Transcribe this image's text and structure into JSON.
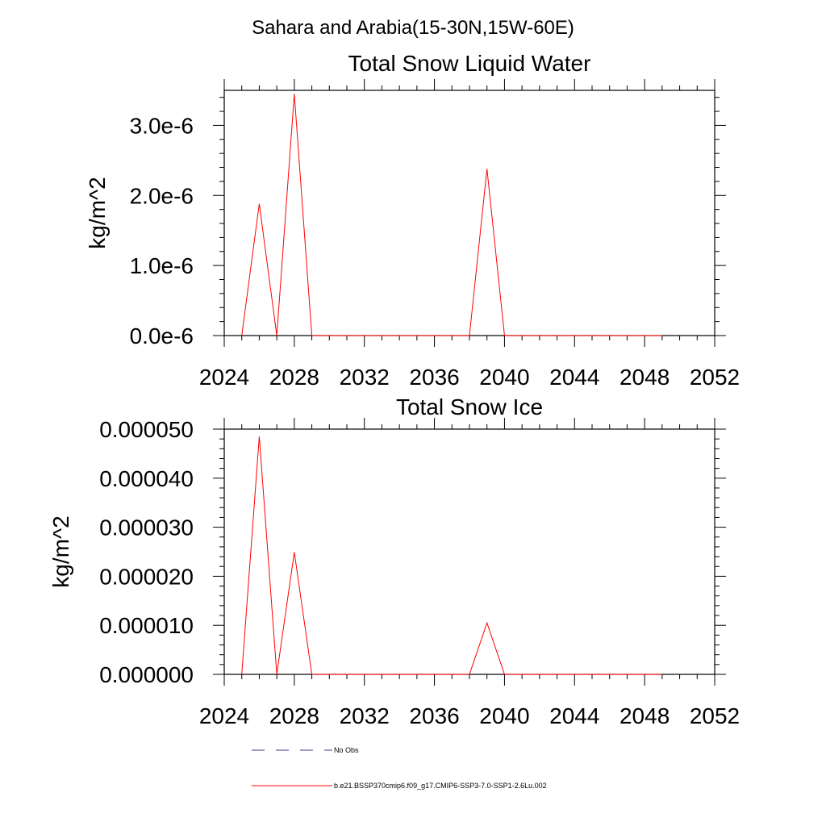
{
  "figure": {
    "title": "Sahara and Arabia(15-30N,15W-60E)"
  },
  "colors": {
    "model_line": "#ff0000",
    "obs_line": "#3b3b8f",
    "axis": "#000000",
    "background": "#ffffff"
  },
  "chart_data": [
    {
      "type": "line",
      "title": "Total Snow Liquid Water",
      "xlabel": "",
      "ylabel": "kg/m^2",
      "xlim": [
        2024,
        2052
      ],
      "ylim": [
        0,
        3.5e-06
      ],
      "xticks": [
        2024,
        2028,
        2032,
        2036,
        2040,
        2044,
        2048,
        2052
      ],
      "xtick_labels": [
        "2024",
        "2028",
        "2032",
        "2036",
        "2040",
        "2044",
        "2048",
        "2052"
      ],
      "yticks": [
        0,
        1e-06,
        2e-06,
        3e-06
      ],
      "ytick_labels": [
        "0.0e-6",
        "1.0e-6",
        "2.0e-6",
        "3.0e-6"
      ],
      "grid": false,
      "series": [
        {
          "name": "b.e21.BSSP370cmip6.f09_g17.CMIP6-SSP3-7.0-SSP1-2.6Lu.002",
          "x": [
            2025,
            2026,
            2027,
            2028,
            2029,
            2030,
            2031,
            2032,
            2033,
            2034,
            2035,
            2036,
            2037,
            2038,
            2039,
            2040,
            2041,
            2042,
            2043,
            2044,
            2045,
            2046,
            2047,
            2048,
            2049
          ],
          "values": [
            0,
            1.88e-06,
            0,
            3.45e-06,
            0,
            0,
            0,
            0,
            0,
            0,
            0,
            0,
            0,
            0,
            2.38e-06,
            0,
            0,
            0,
            0,
            0,
            0,
            0,
            0,
            0,
            0
          ]
        }
      ]
    },
    {
      "type": "line",
      "title": "Total Snow Ice",
      "xlabel": "",
      "ylabel": "kg/m^2",
      "xlim": [
        2024,
        2052
      ],
      "ylim": [
        0,
        5e-05
      ],
      "xticks": [
        2024,
        2028,
        2032,
        2036,
        2040,
        2044,
        2048,
        2052
      ],
      "xtick_labels": [
        "2024",
        "2028",
        "2032",
        "2036",
        "2040",
        "2044",
        "2048",
        "2052"
      ],
      "yticks": [
        0,
        1e-05,
        2e-05,
        3e-05,
        4e-05,
        5e-05
      ],
      "ytick_labels": [
        "0.000000",
        "0.000010",
        "0.000020",
        "0.000030",
        "0.000040",
        "0.000050"
      ],
      "grid": false,
      "series": [
        {
          "name": "b.e21.BSSP370cmip6.f09_g17.CMIP6-SSP3-7.0-SSP1-2.6Lu.002",
          "x": [
            2025,
            2026,
            2027,
            2028,
            2029,
            2030,
            2031,
            2032,
            2033,
            2034,
            2035,
            2036,
            2037,
            2038,
            2039,
            2040,
            2041,
            2042,
            2043,
            2044,
            2045,
            2046,
            2047,
            2048,
            2049
          ],
          "values": [
            0,
            4.85e-05,
            0,
            2.49e-05,
            0,
            0,
            0,
            0,
            0,
            0,
            0,
            0,
            0,
            0,
            1.05e-05,
            0,
            0,
            0,
            0,
            0,
            0,
            0,
            0,
            0,
            0
          ]
        }
      ]
    }
  ],
  "legend": {
    "items": [
      {
        "label": "No Obs",
        "style": "dashed",
        "color": "#3b3b8f"
      },
      {
        "label": "b.e21.BSSP370cmip6.f09_g17.CMIP6-SSP3-7.0-SSP1-2.6Lu.002",
        "style": "solid",
        "color": "#ff0000"
      }
    ]
  }
}
